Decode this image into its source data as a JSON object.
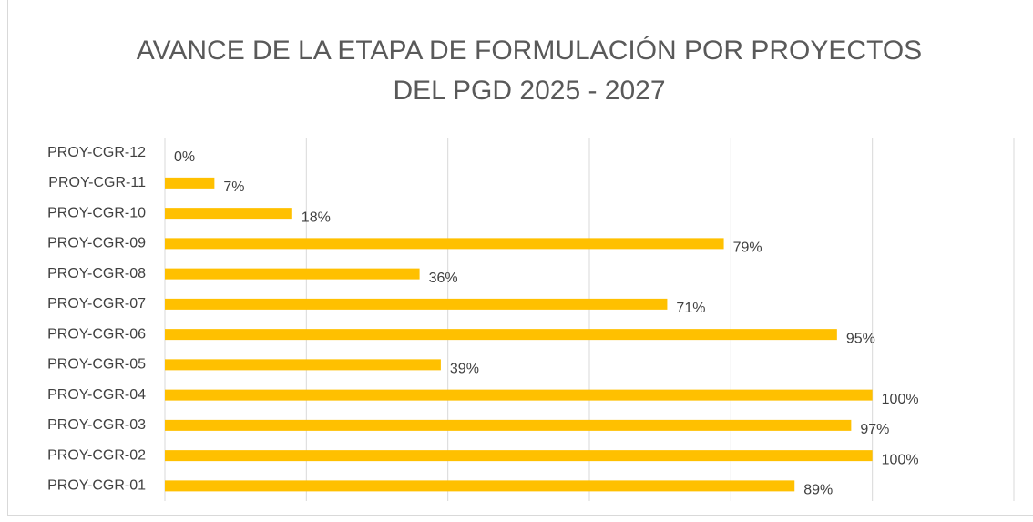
{
  "chart_data": {
    "type": "bar",
    "orientation": "horizontal",
    "title": [
      "AVANCE DE LA ETAPA DE FORMULACIÓN POR PROYECTOS",
      "DEL PGD 2025 - 2027"
    ],
    "categories": [
      "PROY-CGR-01",
      "PROY-CGR-02",
      "PROY-CGR-03",
      "PROY-CGR-04",
      "PROY-CGR-05",
      "PROY-CGR-06",
      "PROY-CGR-07",
      "PROY-CGR-08",
      "PROY-CGR-09",
      "PROY-CGR-10",
      "PROY-CGR-11",
      "PROY-CGR-12"
    ],
    "values": [
      89,
      100,
      97,
      100,
      39,
      95,
      71,
      36,
      79,
      18,
      7,
      0
    ],
    "value_labels": [
      "89%",
      "100%",
      "97%",
      "100%",
      "39%",
      "95%",
      "71%",
      "36%",
      "79%",
      "18%",
      "7%",
      "0%"
    ],
    "color": "#ffc000",
    "xlim": [
      0,
      120
    ],
    "xticks": [
      0,
      20,
      40,
      60,
      80,
      100,
      120
    ],
    "grid": true
  }
}
